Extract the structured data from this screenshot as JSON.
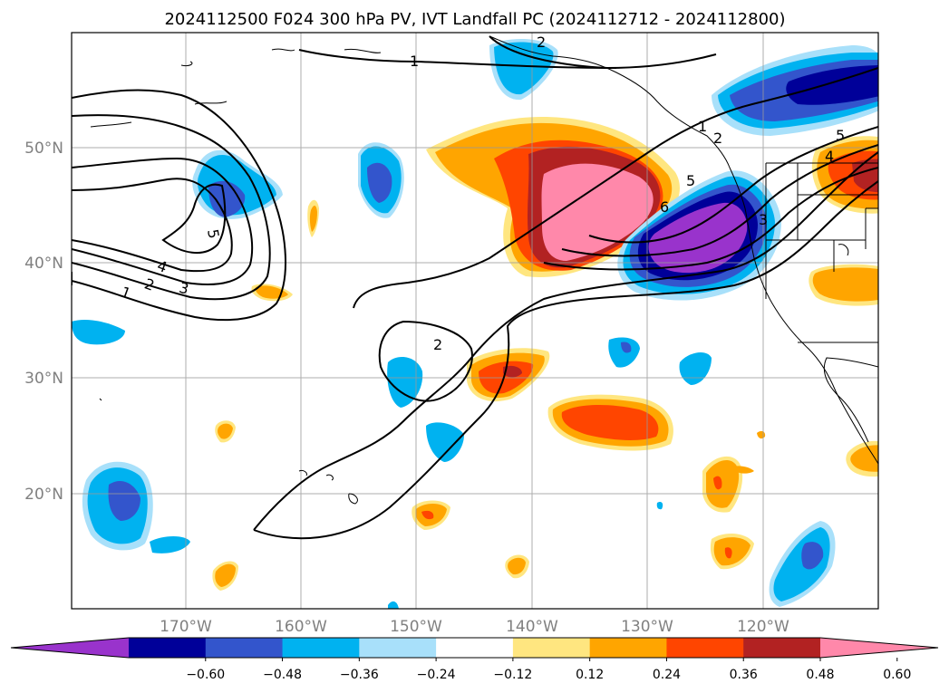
{
  "title": "2024112500 F024 300 hPa PV, IVT Landfall PC (2024112712 - 2024112800)",
  "x_ticks": [
    "170°W",
    "160°W",
    "150°W",
    "140°W",
    "130°W",
    "120°W"
  ],
  "y_ticks": [
    "50°N",
    "40°N",
    "30°N",
    "20°N"
  ],
  "colorbar": {
    "tick_labels": [
      "−0.60",
      "−0.48",
      "−0.36",
      "−0.24",
      "−0.12",
      "0.12",
      "0.24",
      "0.36",
      "0.48",
      "0.60"
    ],
    "colors": [
      "#9933cc",
      "#000099",
      "#3355cc",
      "#00b2f0",
      "#a8e0fa",
      "#ffffff",
      "#ffe680",
      "#ffa500",
      "#ff4500",
      "#b22222",
      "#ff88aa"
    ]
  },
  "contour_labels": [
    "1",
    "2",
    "3",
    "4",
    "5",
    "1",
    "2",
    "5",
    "6",
    "1",
    "2",
    "3",
    "4",
    "5",
    "2"
  ]
}
